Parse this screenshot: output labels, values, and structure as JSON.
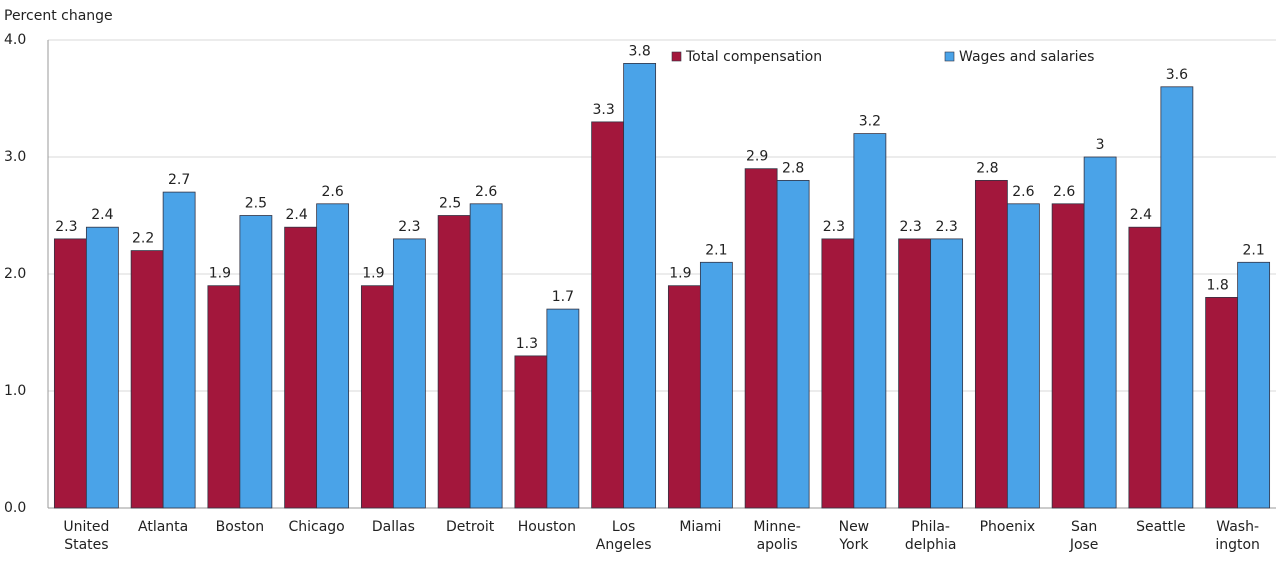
{
  "chart_data": {
    "type": "bar",
    "y_label": "Percent change",
    "categories": [
      "United\nStates",
      "Atlanta",
      "Boston",
      "Chicago",
      "Dallas",
      "Detroit",
      "Houston",
      "Los\nAngeles",
      "Miami",
      "Minne-\napolis",
      "New\nYork",
      "Phila-\ndelphia",
      "Phoenix",
      "San\nJose",
      "Seattle",
      "Wash-\nington"
    ],
    "series": [
      {
        "name": "Total compensation",
        "color": "#a3173c",
        "values": [
          2.3,
          2.2,
          1.9,
          2.4,
          1.9,
          2.5,
          1.3,
          3.3,
          1.9,
          2.9,
          2.3,
          2.3,
          2.8,
          2.6,
          2.4,
          1.8
        ]
      },
      {
        "name": "Wages and salaries",
        "color": "#4aa3e8",
        "values": [
          2.4,
          2.7,
          2.5,
          2.6,
          2.3,
          2.6,
          1.7,
          3.8,
          2.1,
          2.8,
          3.2,
          2.3,
          2.6,
          3.0,
          3.6,
          2.1
        ]
      }
    ],
    "ylim": [
      0,
      4
    ],
    "yticks": [
      {
        "value": 0,
        "label": "0.0"
      },
      {
        "value": 1,
        "label": "1.0"
      },
      {
        "value": 2,
        "label": "2.0"
      },
      {
        "value": 3,
        "label": "3.0"
      },
      {
        "value": 4,
        "label": "4.0"
      }
    ],
    "grid": true,
    "legend": "top-right"
  }
}
